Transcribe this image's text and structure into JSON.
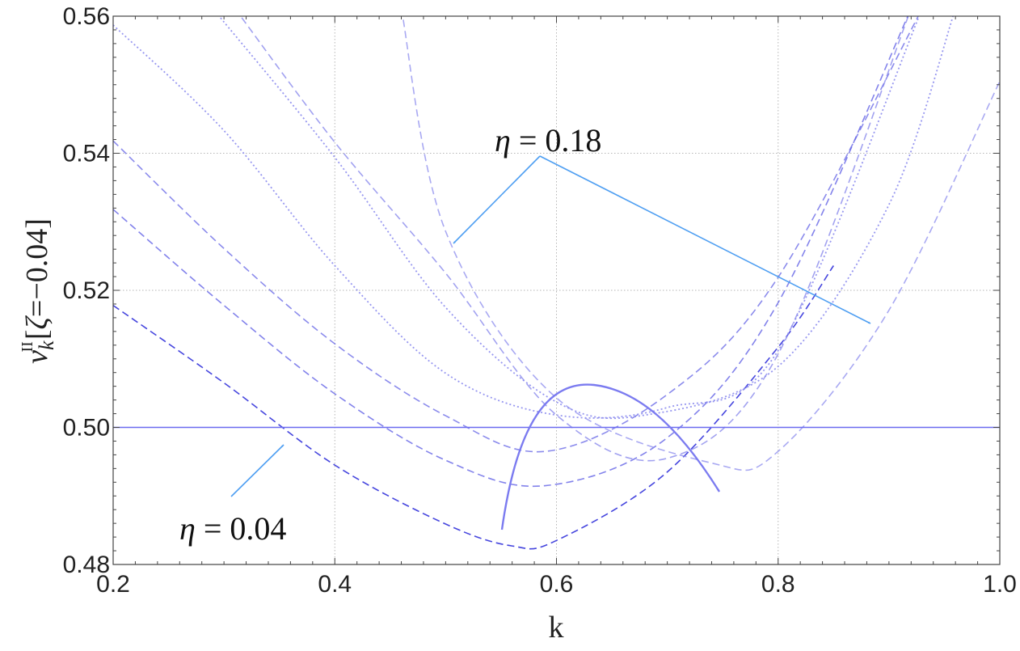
{
  "chart_data": {
    "type": "line",
    "xlabel": "k",
    "ylabel": "ν k II [ ζ = −0.04 ]",
    "ylabel_parts": {
      "symbol": "ν",
      "subscript": "k",
      "superscript": "II",
      "bracket_open": "[",
      "zeta": "ζ",
      "eq_value": "=−0.04",
      "bracket_close": "]"
    },
    "xlim": [
      0.2,
      1.0
    ],
    "ylim": [
      0.48,
      0.56
    ],
    "x_ticks": [
      "0.2",
      "0.4",
      "0.6",
      "0.8",
      "1.0"
    ],
    "x_tick_values": [
      0.2,
      0.4,
      0.6,
      0.8,
      1.0
    ],
    "y_ticks": [
      "0.48",
      "0.50",
      "0.52",
      "0.54",
      "0.56"
    ],
    "y_tick_values": [
      0.48,
      0.5,
      0.52,
      0.54,
      0.56
    ],
    "grid": true,
    "reference_line": {
      "y": 0.5,
      "color": "#6b6bf0"
    },
    "series": [
      {
        "style": "dashed",
        "color": "#3c3cdc",
        "opacity": 0.95,
        "dash": "9,5",
        "x": [
          0.2,
          0.3,
          0.4,
          0.5,
          0.56,
          0.6,
          0.7,
          0.8,
          0.85
        ],
        "y": [
          0.5178,
          0.5065,
          0.4945,
          0.4859,
          0.4827,
          0.4835,
          0.4935,
          0.5117,
          0.5236
        ]
      },
      {
        "style": "dashed",
        "color": "#6464e6",
        "opacity": 0.8,
        "dash": "9,5",
        "x": [
          0.2,
          0.3,
          0.4,
          0.5,
          0.59,
          0.7,
          0.8,
          0.92
        ],
        "y": [
          0.5318,
          0.5178,
          0.5049,
          0.4952,
          0.4915,
          0.4985,
          0.5182,
          0.5611
        ]
      },
      {
        "style": "dashed",
        "color": "#6464e6",
        "opacity": 0.75,
        "dash": "9,5",
        "x": [
          0.2,
          0.3,
          0.4,
          0.5,
          0.59,
          0.7,
          0.8,
          0.93
        ],
        "y": [
          0.5418,
          0.5261,
          0.5122,
          0.5017,
          0.4965,
          0.5048,
          0.5219,
          0.5611
        ]
      },
      {
        "style": "dashed",
        "color": "#7a7aea",
        "opacity": 0.7,
        "dash": "9,5",
        "x": [
          0.31,
          0.4,
          0.5,
          0.6,
          0.7,
          0.8,
          0.92
        ],
        "y": [
          0.5611,
          0.5416,
          0.5225,
          0.5018,
          0.4955,
          0.5107,
          0.5611
        ]
      },
      {
        "style": "dashed",
        "color": "#8c8cee",
        "opacity": 0.75,
        "dash": "9,5",
        "x": [
          0.46,
          0.5,
          0.6,
          0.74,
          0.8,
          0.9,
          1.0
        ],
        "y": [
          0.5611,
          0.5286,
          0.5043,
          0.4948,
          0.4965,
          0.5171,
          0.5505
        ]
      },
      {
        "style": "dotted",
        "color": "#8c8cee",
        "opacity": 0.9,
        "dash": "2,3",
        "x": [
          0.2,
          0.3,
          0.4,
          0.5,
          0.6,
          0.7,
          0.8,
          0.93
        ],
        "y": [
          0.5587,
          0.5433,
          0.5236,
          0.5079,
          0.5018,
          0.5029,
          0.5112,
          0.5611
        ]
      },
      {
        "style": "dotted",
        "color": "#8c8cee",
        "opacity": 0.9,
        "dash": "2,3",
        "x": [
          0.29,
          0.4,
          0.5,
          0.6,
          0.68,
          0.8,
          0.9,
          0.96
        ],
        "y": [
          0.5611,
          0.5394,
          0.5175,
          0.5037,
          0.5018,
          0.5089,
          0.5325,
          0.5611
        ]
      }
    ],
    "annotations": [
      {
        "label": "η = 0.18",
        "symbol": "η",
        "value": "= 0.18"
      },
      {
        "label": "η = 0.04",
        "symbol": "η",
        "value": "= 0.04"
      }
    ]
  }
}
